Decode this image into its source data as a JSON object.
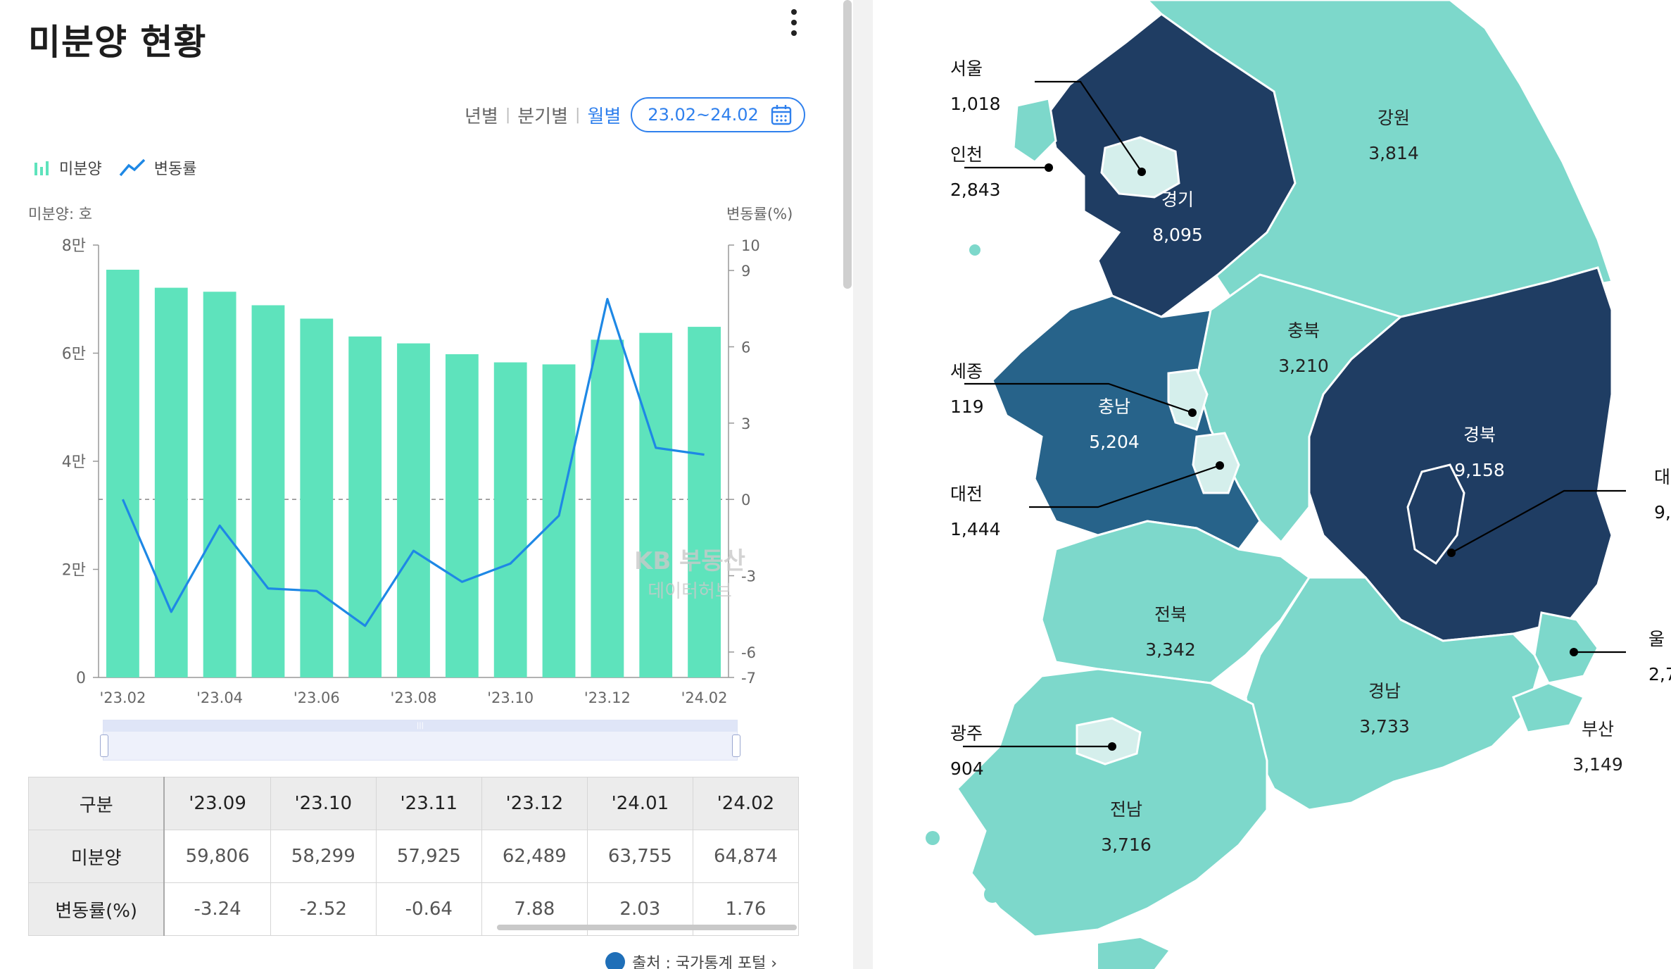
{
  "header": {
    "title": "미분양 현황"
  },
  "period": {
    "yearly": "년별",
    "quarterly": "분기별",
    "monthly": "월별",
    "range": "23.02~24.02"
  },
  "legend": {
    "bar": "미분양",
    "line": "변동률"
  },
  "axes": {
    "left_unit": "미분양: 호",
    "right_unit": "변동률(%)"
  },
  "colors": {
    "bar": "#5ee3bc",
    "line": "#1e88e5",
    "accent": "#2f80ed",
    "dark": "#1f3d63",
    "mid": "#27638a",
    "light": "#7dd8cb",
    "pale": "#d5efec"
  },
  "chart_data": {
    "type": "bar",
    "categories": [
      "'23.02",
      "'23.03",
      "'23.04",
      "'23.05",
      "'23.06",
      "'23.07",
      "'23.08",
      "'23.09",
      "'23.10",
      "'23.11",
      "'23.12",
      "'24.01",
      "'24.02"
    ],
    "x_tick_labels": [
      "'23.02",
      "'23.04",
      "'23.06",
      "'23.08",
      "'23.10",
      "'23.12",
      "'24.02"
    ],
    "series": [
      {
        "name": "미분양",
        "type": "bar",
        "axis": "left",
        "values": [
          75438,
          72104,
          71365,
          68865,
          66388,
          63087,
          61811,
          59806,
          58299,
          57925,
          62489,
          63755,
          64874
        ]
      },
      {
        "name": "변동률",
        "type": "line",
        "axis": "right",
        "values": [
          0.0,
          -4.42,
          -1.03,
          -3.5,
          -3.6,
          -4.97,
          -2.02,
          -3.24,
          -2.52,
          -0.64,
          7.88,
          2.03,
          1.76
        ]
      }
    ],
    "ylim_left": [
      0,
      80000
    ],
    "yticks_left": [
      0,
      20000,
      40000,
      60000,
      80000
    ],
    "ytick_labels_left": [
      "0",
      "2만",
      "4만",
      "6만",
      "8만"
    ],
    "ylim_right": [
      -7,
      10
    ],
    "yticks_right": [
      -7,
      -6,
      -3,
      0,
      3,
      6,
      9,
      10
    ],
    "zero_line": true
  },
  "watermark": {
    "line1": "KB 부동산",
    "line2": "데이터허브"
  },
  "table": {
    "header_label": "구분",
    "columns": [
      "'23.09",
      "'23.10",
      "'23.11",
      "'23.12",
      "'24.01",
      "'24.02"
    ],
    "rows": [
      {
        "label": "미분양",
        "values": [
          "59,806",
          "58,299",
          "57,925",
          "62,489",
          "63,755",
          "64,874"
        ]
      },
      {
        "label": "변동률(%)",
        "values": [
          "-3.24",
          "-2.52",
          "-0.64",
          "7.88",
          "2.03",
          "1.76"
        ]
      }
    ]
  },
  "source": {
    "text": "출처 : 국가통계 포털 ›"
  },
  "map": {
    "regions": [
      {
        "name": "강원",
        "value": "3,814"
      },
      {
        "name": "경기",
        "value": "8,095"
      },
      {
        "name": "충북",
        "value": "3,210"
      },
      {
        "name": "충남",
        "value": "5,204"
      },
      {
        "name": "경북",
        "value": "9,158"
      },
      {
        "name": "전북",
        "value": "3,342"
      },
      {
        "name": "경남",
        "value": "3,733"
      },
      {
        "name": "전남",
        "value": "3,716"
      },
      {
        "name": "부산",
        "value": "3,149"
      }
    ],
    "side_labels": [
      {
        "name": "서울",
        "value": "1,018"
      },
      {
        "name": "인천",
        "value": "2,843"
      },
      {
        "name": "세종",
        "value": "119"
      },
      {
        "name": "대전",
        "value": "1,444"
      },
      {
        "name": "광주",
        "value": "904"
      },
      {
        "name": "대",
        "value": "9,"
      },
      {
        "name": "울",
        "value": "2,7"
      }
    ]
  }
}
